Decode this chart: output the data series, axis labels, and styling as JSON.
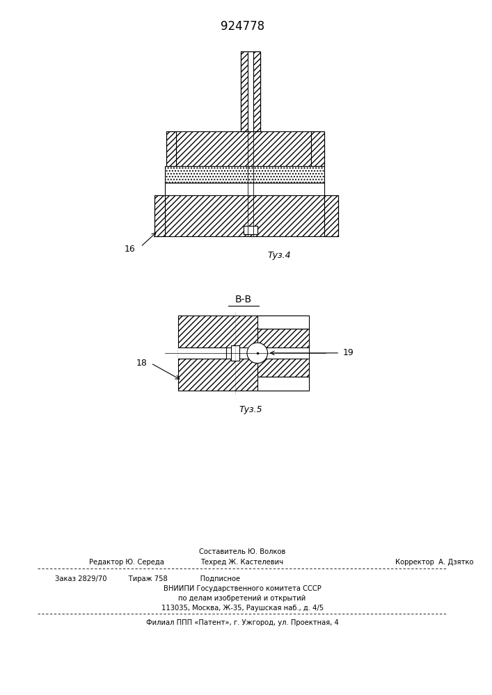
{
  "title": "924778",
  "fig4_label": "Τуз.4",
  "fig5_label": "Τуз.5",
  "label_16": "16",
  "label_18": "18",
  "label_19": "19",
  "section_label": "В-В",
  "footer_line0": "Составитель Ю. Волков",
  "footer_line1a": "Редактор Ю. Середа",
  "footer_line1b": "Техред Ж. Кастелевич",
  "footer_line1c": "Корректор  А. Дзятко",
  "footer_line2": "Заказ 2829/70          Тираж 758               Подписное",
  "footer_line3": "ВНИИПИ Государственного комитета СССР",
  "footer_line4": "по делам изобретений и открытий",
  "footer_line5": "113035, Москва, Ж-35, Раушская наб., д. 4/5",
  "footer_line6": "Филиал ППП «Патент», г. Ужгород, ул. Проектная, 4",
  "bg_color": "#ffffff",
  "line_color": "#000000"
}
